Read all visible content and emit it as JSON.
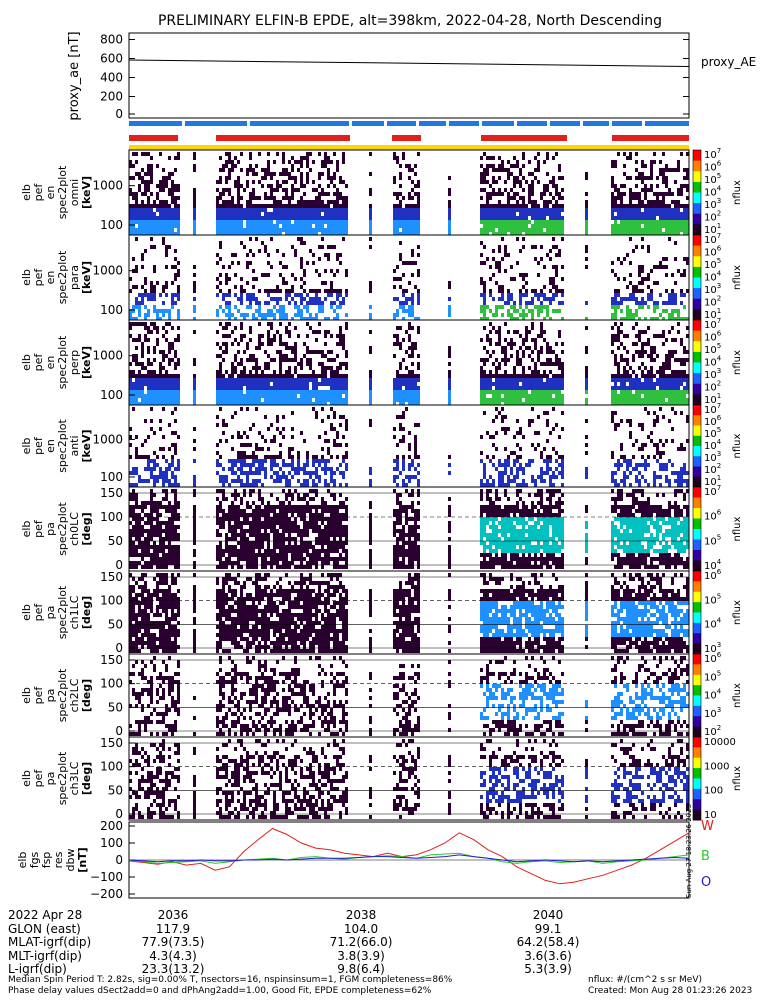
{
  "title": "PRELIMINARY ELFIN-B EPDE, alt=398km, 2022-04-28, North Descending",
  "colors": {
    "red": "#e0201a",
    "blue": "#1e78e6",
    "yellow": "#ffd700",
    "green": "#2ec82e",
    "darkblue": "#2020d0"
  },
  "chart_data": [
    {
      "type": "line",
      "ylabel": "proxy_ae [nT]",
      "ylim": [
        -50,
        850
      ],
      "yticks": [
        "800",
        "600",
        "400",
        "200",
        "0"
      ],
      "series": [
        {
          "name": "proxy_AE",
          "x": [
            0,
            1
          ],
          "values": [
            580,
            510
          ]
        }
      ]
    },
    {
      "type": "heatmap",
      "panels": [
        {
          "label": [
            "elb",
            "pef",
            "en",
            "spec2plot",
            "omni",
            "[keV]"
          ],
          "yticks": [
            "1000",
            "100"
          ],
          "cbar": [
            "10",
            "10",
            "10",
            "10",
            "10",
            "10",
            "10"
          ],
          "cbar_exp": [
            "7",
            "6",
            "5",
            "4",
            "3",
            "2",
            "1"
          ],
          "cbar_label": "nflux"
        },
        {
          "label": [
            "elb",
            "pef",
            "en",
            "spec2plot",
            "para",
            "[keV]"
          ],
          "yticks": [
            "1000",
            "100"
          ],
          "cbar": [
            "10",
            "10",
            "10",
            "10",
            "10",
            "10",
            "10"
          ],
          "cbar_exp": [
            "7",
            "6",
            "5",
            "4",
            "3",
            "2",
            "1"
          ],
          "cbar_label": "nflux"
        },
        {
          "label": [
            "elb",
            "pef",
            "en",
            "spec2plot",
            "perp",
            "[keV]"
          ],
          "yticks": [
            "1000",
            "100"
          ],
          "cbar": [
            "10",
            "10",
            "10",
            "10",
            "10",
            "10",
            "10"
          ],
          "cbar_exp": [
            "7",
            "6",
            "5",
            "4",
            "3",
            "2",
            "1"
          ],
          "cbar_label": "nflux"
        },
        {
          "label": [
            "elb",
            "pef",
            "en",
            "spec2plot",
            "anti",
            "[keV]"
          ],
          "yticks": [
            "1000",
            "100"
          ],
          "cbar": [
            "10",
            "10",
            "10",
            "10",
            "10",
            "10",
            "10"
          ],
          "cbar_exp": [
            "7",
            "6",
            "5",
            "4",
            "3",
            "2",
            "1"
          ],
          "cbar_label": "nflux"
        },
        {
          "label": [
            "elb",
            "pef",
            "pa",
            "spec2plot",
            "ch0LC",
            "[deg]"
          ],
          "yticks": [
            "150",
            "100",
            "50",
            "0"
          ],
          "cbar": [
            "10",
            "10",
            "10",
            "10"
          ],
          "cbar_exp": [
            "7",
            "6",
            "5",
            "4"
          ],
          "cbar_label": "nflux"
        },
        {
          "label": [
            "elb",
            "pef",
            "pa",
            "spec2plot",
            "ch1LC",
            "[deg]"
          ],
          "yticks": [
            "150",
            "100",
            "50",
            "0"
          ],
          "cbar": [
            "10",
            "10",
            "10",
            "10"
          ],
          "cbar_exp": [
            "6",
            "5",
            "4",
            "3"
          ],
          "cbar_label": "nflux"
        },
        {
          "label": [
            "elb",
            "pef",
            "pa",
            "spec2plot",
            "ch2LC",
            "[deg]"
          ],
          "yticks": [
            "150",
            "100",
            "50",
            "0"
          ],
          "cbar": [
            "10",
            "10",
            "10",
            "10",
            "10"
          ],
          "cbar_exp": [
            "6",
            "5",
            "4",
            "3",
            "2"
          ],
          "cbar_label": "nflux"
        },
        {
          "label": [
            "elb",
            "pef",
            "pa",
            "spec2plot",
            "ch3LC",
            "[deg]"
          ],
          "yticks": [
            "150",
            "100",
            "50",
            "0"
          ],
          "cbar": [
            "10000",
            "1000",
            "100",
            "10"
          ],
          "cbar_exp": [
            "",
            "",
            "",
            ""
          ],
          "cbar_label": "nflux"
        }
      ]
    },
    {
      "type": "line",
      "ylabel": "elb fgs fsp res dbw [nT]",
      "ylim": [
        -220,
        220
      ],
      "yticks": [
        "200",
        "100",
        "0",
        "−100",
        "−200"
      ],
      "legend": [
        "W",
        "B",
        "O"
      ],
      "series": [
        {
          "name": "W",
          "values": [
            -5,
            -15,
            -25,
            -10,
            -30,
            -20,
            -60,
            -40,
            50,
            120,
            185,
            150,
            100,
            70,
            60,
            40,
            30,
            20,
            40,
            20,
            30,
            60,
            100,
            160,
            120,
            60,
            20,
            -40,
            -80,
            -120,
            -140,
            -130,
            -110,
            -90,
            -60,
            -30,
            10,
            60,
            110,
            160
          ]
        },
        {
          "name": "B",
          "values": [
            0,
            -10,
            -20,
            -15,
            -10,
            -5,
            -20,
            -10,
            0,
            5,
            10,
            0,
            15,
            20,
            10,
            5,
            15,
            20,
            25,
            20,
            10,
            30,
            35,
            40,
            20,
            10,
            -10,
            -20,
            -10,
            -5,
            -15,
            -10,
            -5,
            -20,
            -10,
            -5,
            0,
            10,
            20,
            30
          ]
        },
        {
          "name": "O",
          "values": [
            0,
            -5,
            -10,
            -5,
            -5,
            0,
            -5,
            -5,
            0,
            0,
            5,
            0,
            5,
            10,
            10,
            10,
            15,
            20,
            20,
            15,
            10,
            15,
            20,
            30,
            20,
            10,
            0,
            -10,
            -5,
            0,
            -5,
            -10,
            -5,
            -10,
            -5,
            0,
            5,
            10,
            15,
            10
          ]
        }
      ]
    }
  ],
  "bar_labels": {
    "top": "proxy_AE"
  },
  "xaxis": {
    "date": "2022 Apr 28",
    "ticks": [
      "2036",
      "2038",
      "2040"
    ]
  },
  "orbit_table": [
    {
      "label": "GLON (east)",
      "values": [
        "117.9",
        "104.0",
        "99.1"
      ]
    },
    {
      "label": "MLAT-igrf(dip)",
      "values": [
        "77.9(73.5)",
        "71.2(66.0)",
        "64.2(58.4)"
      ]
    },
    {
      "label": "MLT-igrf(dip)",
      "values": [
        "4.3(4.3)",
        "3.8(3.9)",
        "3.6(3.6)"
      ]
    },
    {
      "label": "L-igrf(dip)",
      "values": [
        "23.3(13.2)",
        "9.8(6.4)",
        "5.3(3.9)"
      ]
    }
  ],
  "notes": {
    "line1": "Median Spin Period T: 2.82s, sig=0.00% T, nsectors=16, nspinsinsum=1, FGM completeness=86%",
    "line2": "Phase delay values dSect2add=0 and dPhAng2add=1.00, Good Fit, EPDE completeness=62%",
    "right1": "nflux: #/(cm^2 s sr MeV)",
    "right2": "Created: Mon Aug 28 01:23:26 2023",
    "side": "Sun Aug 27 18:23:26 2023"
  }
}
